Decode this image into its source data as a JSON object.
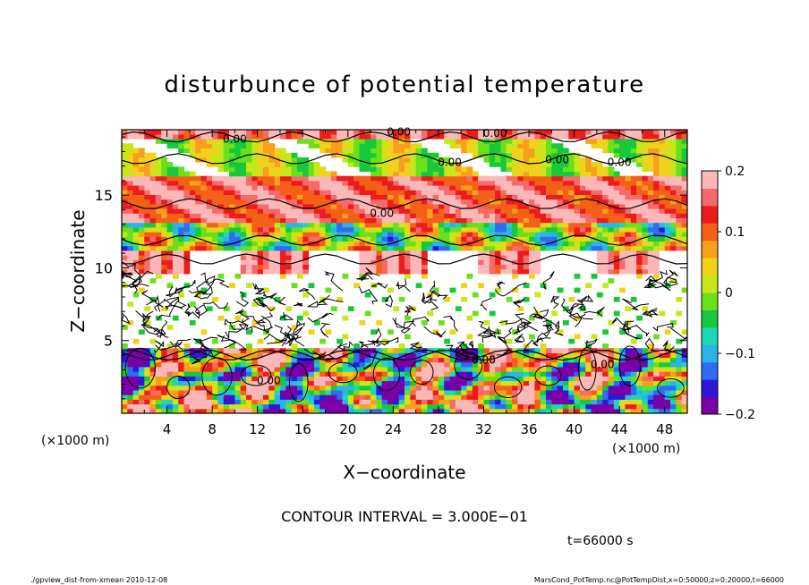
{
  "chart_data": {
    "type": "heatmap",
    "title": "disturbunce of potential temperature",
    "xlabel": "X−coordinate",
    "ylabel": "Z−coordinate",
    "x_unit_left": "(×1000 m)",
    "x_unit_right": "(×1000 m)",
    "xlim": [
      0,
      50
    ],
    "ylim": [
      0,
      19.5
    ],
    "x_ticks": [
      "4",
      "8",
      "12",
      "16",
      "20",
      "24",
      "28",
      "32",
      "36",
      "40",
      "44",
      "48"
    ],
    "y_ticks": [
      "5",
      "10",
      "15"
    ],
    "colorbar": {
      "range": [
        -0.2,
        0.2
      ],
      "ticks": [
        "0.2",
        "0.1",
        "0",
        "−0.1",
        "−0.2"
      ],
      "colors": [
        "#7a00a8",
        "#2d18d8",
        "#2f6cf0",
        "#2ab4e8",
        "#20d6b4",
        "#18c83c",
        "#6ae01c",
        "#c8e61c",
        "#f0d21c",
        "#f6a01e",
        "#f46018",
        "#ec1c1c",
        "#f66a6a",
        "#fcb8b8"
      ]
    },
    "bands": [
      {
        "z": [
          0,
          4
        ],
        "pattern": "eddies",
        "value": "mixed"
      },
      {
        "z": [
          4,
          9.5
        ],
        "pattern": "contour-noise",
        "value": "~0"
      },
      {
        "z": [
          9.5,
          11
        ],
        "pattern": "layer",
        "value": "0.1 to 0.2"
      },
      {
        "z": [
          11,
          13
        ],
        "pattern": "mixed",
        "value": "-0.1 to 0.1"
      },
      {
        "z": [
          13,
          16
        ],
        "pattern": "layer",
        "value": "0.1 to 0.2"
      },
      {
        "z": [
          16,
          19
        ],
        "pattern": "layer",
        "value": "~0"
      },
      {
        "z": [
          19,
          19.5
        ],
        "pattern": "layer",
        "value": "0.1 to 0.2"
      }
    ],
    "contour_labels": [
      "0.00",
      "0.00",
      "0.00",
      "0.00",
      "0.00",
      "0.00",
      "0.00",
      "0.00",
      "0.00",
      "0.00"
    ]
  },
  "annotations": {
    "contour_interval": "CONTOUR INTERVAL = 3.000E−01",
    "time": "t=66000 s",
    "footer_left": "./gpview_dist-from-xmean  2010-12-08",
    "footer_right": "MarsCond_PotTemp.nc@PotTempDist,x=0:50000,z=0:20000,t=66000"
  }
}
